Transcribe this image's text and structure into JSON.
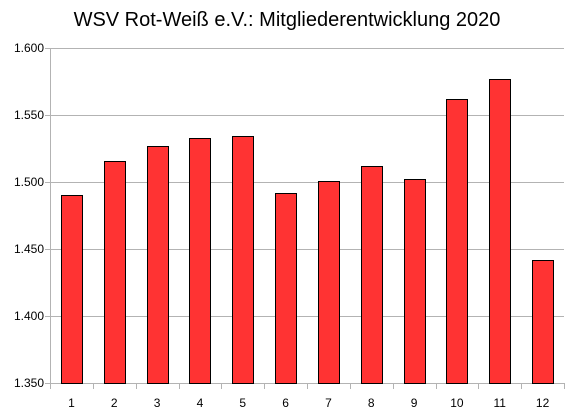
{
  "chart_data": {
    "type": "bar",
    "title": "WSV Rot-Weiß e.V.: Mitgliederentwicklung 2020",
    "xlabel": "",
    "ylabel": "",
    "categories": [
      "1",
      "2",
      "3",
      "4",
      "5",
      "6",
      "7",
      "8",
      "9",
      "10",
      "11",
      "12"
    ],
    "values": [
      1490,
      1516,
      1527,
      1533,
      1534,
      1492,
      1501,
      1512,
      1502,
      1562,
      1577,
      1442
    ],
    "ylim": [
      1350,
      1600
    ],
    "yticks": [
      1350,
      1400,
      1450,
      1500,
      1550,
      1600
    ],
    "ytick_labels": [
      "1.350",
      "1.400",
      "1.450",
      "1.500",
      "1.550",
      "1.600"
    ],
    "grid": true,
    "legend": "none",
    "colors": {
      "bar_fill": "#ff3333",
      "bar_stroke": "#000000",
      "grid": "#b3b3b3",
      "axis": "#b3b3b3"
    }
  }
}
